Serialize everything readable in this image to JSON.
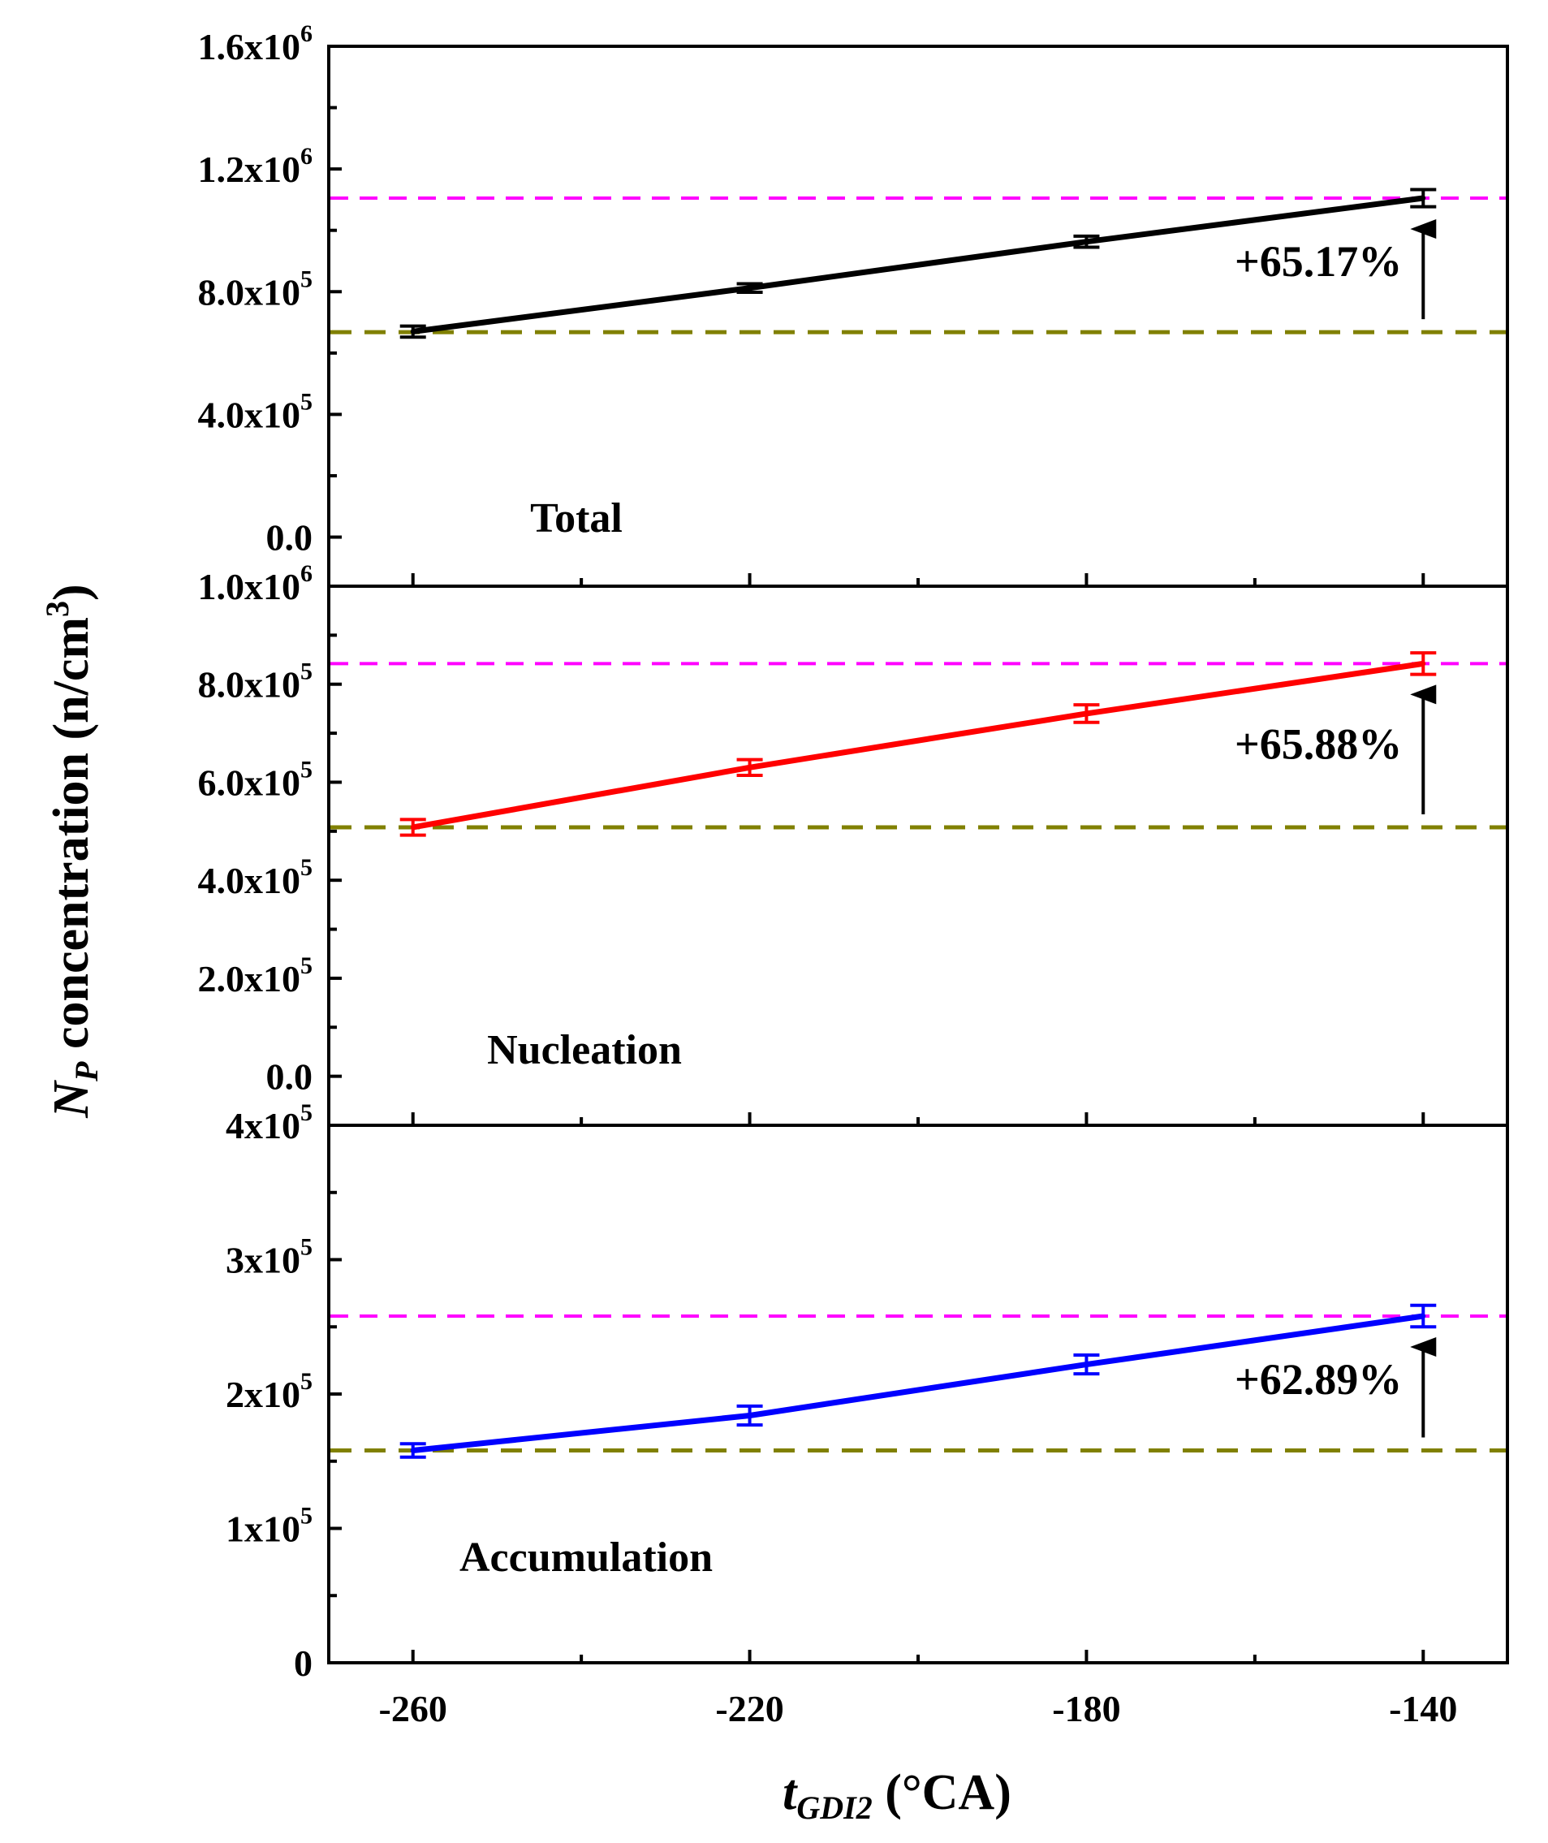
{
  "chart_data": {
    "type": "line",
    "xlabel": "t_GDI2 (°CA)",
    "xlabel_parts": {
      "base": "t",
      "subscript": "GDI2",
      "unit": "(°CA)"
    },
    "ylabel": "N_P concentration (n/cm³)",
    "ylabel_parts": {
      "base": "N",
      "subscript": "P",
      "rest": "concentration (n/cm",
      "superscript": "3",
      "close": ")"
    },
    "x": [
      -260,
      -220,
      -180,
      -140
    ],
    "xlim": [
      -270,
      -130
    ],
    "x_ticks": [
      "-260",
      "-220",
      "-180",
      "-140"
    ],
    "panels": [
      {
        "name": "Total",
        "label": "Total",
        "color": "#000000",
        "values": [
          670000,
          812000,
          963000,
          1105000
        ],
        "errors": [
          18000,
          14000,
          18000,
          28000
        ],
        "ylim": [
          -160000,
          1600000
        ],
        "y_ticks": [
          {
            "value": 0,
            "mant": "0.0",
            "exp": ""
          },
          {
            "value": 400000,
            "mant": "4.0x10",
            "exp": "5"
          },
          {
            "value": 800000,
            "mant": "8.0x10",
            "exp": "5"
          },
          {
            "value": 1200000,
            "mant": "1.2x10",
            "exp": "6"
          },
          {
            "value": 1600000,
            "mant": "1.6x10",
            "exp": "6"
          }
        ],
        "baseline": 668000,
        "upper_line": 1105000,
        "annotation": "+65.17%"
      },
      {
        "name": "Nucleation",
        "label": "Nucleation",
        "color": "#ff0000",
        "values": [
          508000,
          630000,
          740000,
          842000
        ],
        "errors": [
          16000,
          16000,
          18000,
          22000
        ],
        "ylim": [
          -100000,
          1000000
        ],
        "y_ticks": [
          {
            "value": 0,
            "mant": "0.0",
            "exp": ""
          },
          {
            "value": 200000,
            "mant": "2.0x10",
            "exp": "5"
          },
          {
            "value": 400000,
            "mant": "4.0x10",
            "exp": "5"
          },
          {
            "value": 600000,
            "mant": "6.0x10",
            "exp": "5"
          },
          {
            "value": 800000,
            "mant": "8.0x10",
            "exp": "5"
          },
          {
            "value": 1000000,
            "mant": "1.0x10",
            "exp": "6"
          }
        ],
        "baseline": 508000,
        "upper_line": 842000,
        "annotation": "+65.88%"
      },
      {
        "name": "Accumulation",
        "label": "Accumulation",
        "color": "#0000ff",
        "values": [
          158000,
          184000,
          222000,
          258000
        ],
        "errors": [
          5000,
          7000,
          7000,
          8000
        ],
        "ylim": [
          0,
          400000
        ],
        "y_ticks": [
          {
            "value": 0,
            "mant": "0",
            "exp": ""
          },
          {
            "value": 100000,
            "mant": "1x10",
            "exp": "5"
          },
          {
            "value": 200000,
            "mant": "2x10",
            "exp": "5"
          },
          {
            "value": 300000,
            "mant": "3x10",
            "exp": "5"
          },
          {
            "value": 400000,
            "mant": "4x10",
            "exp": "5"
          }
        ],
        "baseline": 158000,
        "upper_line": 258000,
        "annotation": "+62.89%"
      }
    ],
    "upper_line_color": "#ff00ff",
    "baseline_color": "#808000"
  }
}
